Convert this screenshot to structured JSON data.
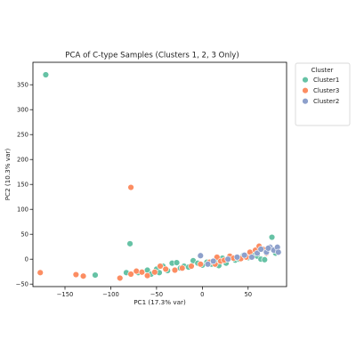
{
  "chart_data": {
    "type": "scatter",
    "title": "PCA of C-type Samples (Clusters 1, 2, 3 Only)",
    "xlabel": "PC1 (17.3% var)",
    "ylabel": "PC2 (10.3% var)",
    "xlim": [
      -185,
      92
    ],
    "ylim": [
      -55,
      395
    ],
    "xticks": [
      -150,
      -100,
      -50,
      0,
      50
    ],
    "yticks": [
      -50,
      0,
      50,
      100,
      150,
      200,
      250,
      300,
      350
    ],
    "grid": false,
    "legend": {
      "title": "Cluster",
      "placement": "outside-right-top"
    },
    "series": [
      {
        "name": "Cluster1",
        "color": "#66c2a5",
        "points": [
          [
            -171,
            370
          ],
          [
            -79,
            31
          ],
          [
            -117,
            -32
          ],
          [
            -83,
            -27
          ],
          [
            -70,
            -27
          ],
          [
            -60,
            -22
          ],
          [
            -56,
            -30
          ],
          [
            -50,
            -20
          ],
          [
            -47,
            -27
          ],
          [
            -43,
            -14
          ],
          [
            -38,
            -23
          ],
          [
            -33,
            -8
          ],
          [
            -28,
            -7
          ],
          [
            -24,
            -18
          ],
          [
            -20,
            -14
          ],
          [
            -15,
            -16
          ],
          [
            -10,
            -3
          ],
          [
            -5,
            -8
          ],
          [
            0,
            -12
          ],
          [
            5,
            -6
          ],
          [
            10,
            -10
          ],
          [
            14,
            -5
          ],
          [
            18,
            -13
          ],
          [
            22,
            2
          ],
          [
            26,
            -8
          ],
          [
            30,
            4
          ],
          [
            36,
            -2
          ],
          [
            40,
            0
          ],
          [
            45,
            8
          ],
          [
            50,
            3
          ],
          [
            55,
            10
          ],
          [
            60,
            6
          ],
          [
            64,
            0
          ],
          [
            68,
            -1
          ],
          [
            76,
            44
          ],
          [
            80,
            12
          ]
        ]
      },
      {
        "name": "Cluster3",
        "color": "#fc8d62",
        "points": [
          [
            -177,
            -27
          ],
          [
            -78,
            144
          ],
          [
            -138,
            -31
          ],
          [
            -130,
            -34
          ],
          [
            -90,
            -38
          ],
          [
            -78,
            -30
          ],
          [
            -72,
            -24
          ],
          [
            -66,
            -26
          ],
          [
            -60,
            -33
          ],
          [
            -52,
            -26
          ],
          [
            -46,
            -14
          ],
          [
            -40,
            -20
          ],
          [
            -30,
            -22
          ],
          [
            -22,
            -18
          ],
          [
            -12,
            -14
          ],
          [
            -2,
            -10
          ],
          [
            8,
            -6
          ],
          [
            14,
            -10
          ],
          [
            16,
            4
          ],
          [
            20,
            -4
          ],
          [
            24,
            -2
          ],
          [
            30,
            6
          ],
          [
            34,
            2
          ],
          [
            42,
            1
          ],
          [
            48,
            4
          ],
          [
            52,
            14
          ],
          [
            58,
            18
          ],
          [
            62,
            26
          ],
          [
            66,
            20
          ],
          [
            70,
            12
          ]
        ]
      },
      {
        "name": "Cluster2",
        "color": "#8da0cb",
        "points": [
          [
            -2,
            7
          ],
          [
            6,
            -10
          ],
          [
            12,
            -4
          ],
          [
            28,
            0
          ],
          [
            38,
            4
          ],
          [
            46,
            8
          ],
          [
            54,
            4
          ],
          [
            60,
            12
          ],
          [
            64,
            20
          ],
          [
            70,
            14
          ],
          [
            74,
            24
          ],
          [
            78,
            18
          ],
          [
            82,
            24
          ],
          [
            83,
            14
          ],
          [
            72,
            22
          ]
        ]
      }
    ]
  }
}
